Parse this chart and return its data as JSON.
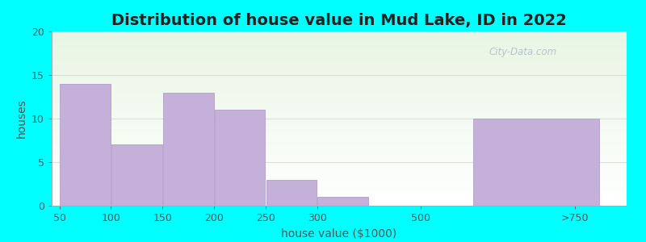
{
  "title": "Distribution of house value in Mud Lake, ID in 2022",
  "xlabel": "house value ($1000)",
  "ylabel": "houses",
  "bar_labels": [
    "50",
    "100",
    "150",
    "200",
    "250",
    "300",
    "500",
    ">750"
  ],
  "bar_heights": [
    14,
    7,
    13,
    11,
    3,
    1,
    0,
    10
  ],
  "bar_color": "#C4B0D8",
  "bar_edgecolor": "#B0A0C8",
  "ylim": [
    0,
    20
  ],
  "yticks": [
    0,
    5,
    10,
    15,
    20
  ],
  "background_outer": "#00FFFF",
  "title_fontsize": 14,
  "axis_label_fontsize": 10,
  "tick_fontsize": 9,
  "watermark_text": "City-Data.com",
  "watermark_color": "#AABBCC",
  "tick_positions": [
    0,
    1,
    2,
    3,
    4,
    5,
    7,
    10
  ],
  "bar_lefts": [
    0,
    1,
    2,
    3,
    4,
    5,
    6,
    8
  ],
  "bar_widths": [
    1,
    1,
    1,
    1,
    1,
    1,
    1,
    2.5
  ],
  "xlim": [
    -0.15,
    11.0
  ],
  "grid_color": "#DDDDDD",
  "plot_bg_green": [
    0.91,
    0.96,
    0.89
  ],
  "plot_bg_white": [
    1.0,
    1.0,
    1.0
  ]
}
